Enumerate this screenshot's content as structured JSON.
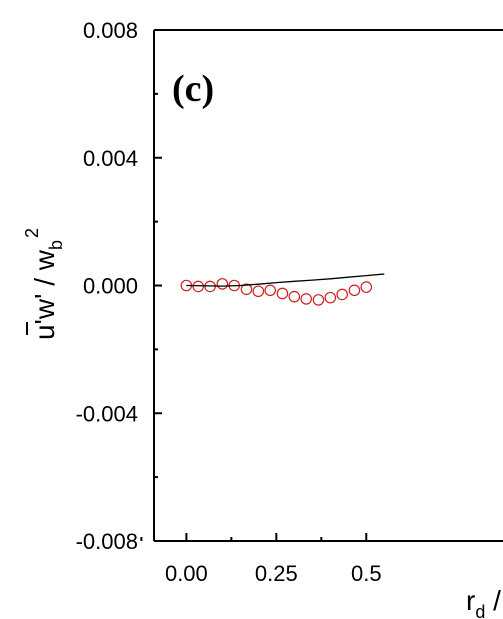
{
  "chart_data": {
    "type": "scatter",
    "panel_label": "(c)",
    "ylabel": {
      "main": "u'w' / w",
      "sub": "b",
      "sup": "2"
    },
    "xlabel": {
      "main": "r",
      "sub": "d",
      "tail": " /"
    },
    "xlim": [
      -0.09,
      0.88
    ],
    "ylim": [
      -0.008,
      0.008
    ],
    "x_ticks": [
      0.0,
      0.25,
      0.5
    ],
    "x_tick_labels": [
      "0.00",
      "0.25",
      "0.5"
    ],
    "y_ticks": [
      0.008,
      0.004,
      0.0,
      -0.004,
      -0.008
    ],
    "y_tick_labels": [
      "0.008",
      "0.004",
      "0.000",
      "-0.004",
      "-0.008"
    ],
    "colors": {
      "markers": "#cc2222",
      "line": "#000000",
      "axes": "#000000"
    },
    "series": [
      {
        "style": "markers",
        "x": [
          0.0,
          0.033,
          0.066,
          0.1,
          0.133,
          0.167,
          0.2,
          0.233,
          0.267,
          0.3,
          0.333,
          0.367,
          0.4,
          0.433,
          0.467,
          0.5
        ],
        "y": [
          0.0,
          -3e-05,
          -3e-05,
          5e-05,
          0.0,
          -0.00012,
          -0.00018,
          -0.00015,
          -0.00025,
          -0.00035,
          -0.00042,
          -0.00045,
          -0.00038,
          -0.00028,
          -0.00015,
          -5e-05
        ]
      },
      {
        "style": "line",
        "x": [
          0.0,
          0.1,
          0.15,
          0.2,
          0.25,
          0.3,
          0.35,
          0.4,
          0.45,
          0.5,
          0.55
        ],
        "y": [
          0.0,
          -2e-05,
          0.0,
          4e-05,
          9e-05,
          0.00013,
          0.00017,
          0.00021,
          0.00026,
          0.00031,
          0.00036
        ]
      }
    ]
  }
}
